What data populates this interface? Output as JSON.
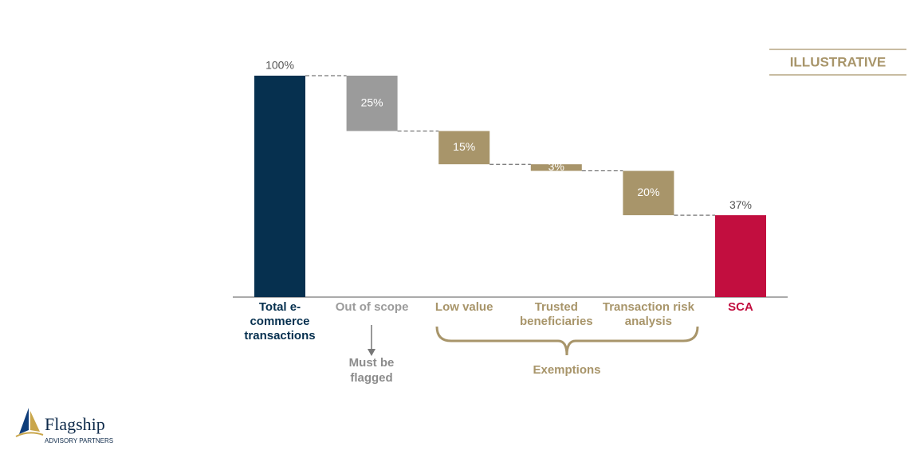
{
  "chart_data": {
    "type": "waterfall",
    "categories": [
      "Total e-commerce transactions",
      "Out of scope",
      "Low value",
      "Trusted beneficiaries",
      "Transaction risk analysis",
      "SCA"
    ],
    "values": [
      100,
      25,
      15,
      3,
      20,
      37
    ],
    "value_labels": [
      "100%",
      "25%",
      "15%",
      "3%",
      "20%",
      "37%"
    ],
    "measures": [
      "total",
      "decrease",
      "decrease",
      "decrease",
      "decrease",
      "total"
    ],
    "colors": [
      "#06304f",
      "#9b9b9b",
      "#a8956a",
      "#a8956a",
      "#a8956a",
      "#c20e3f"
    ],
    "badge": "ILLUSTRATIVE",
    "annotations": [
      {
        "text": "Must be flagged",
        "color": "#8c8c8c"
      },
      {
        "text": "Exemptions",
        "color": "#a8956a"
      }
    ]
  },
  "logo": {
    "name": "Flagship",
    "tagline": "ADVISORY PARTNERS"
  }
}
